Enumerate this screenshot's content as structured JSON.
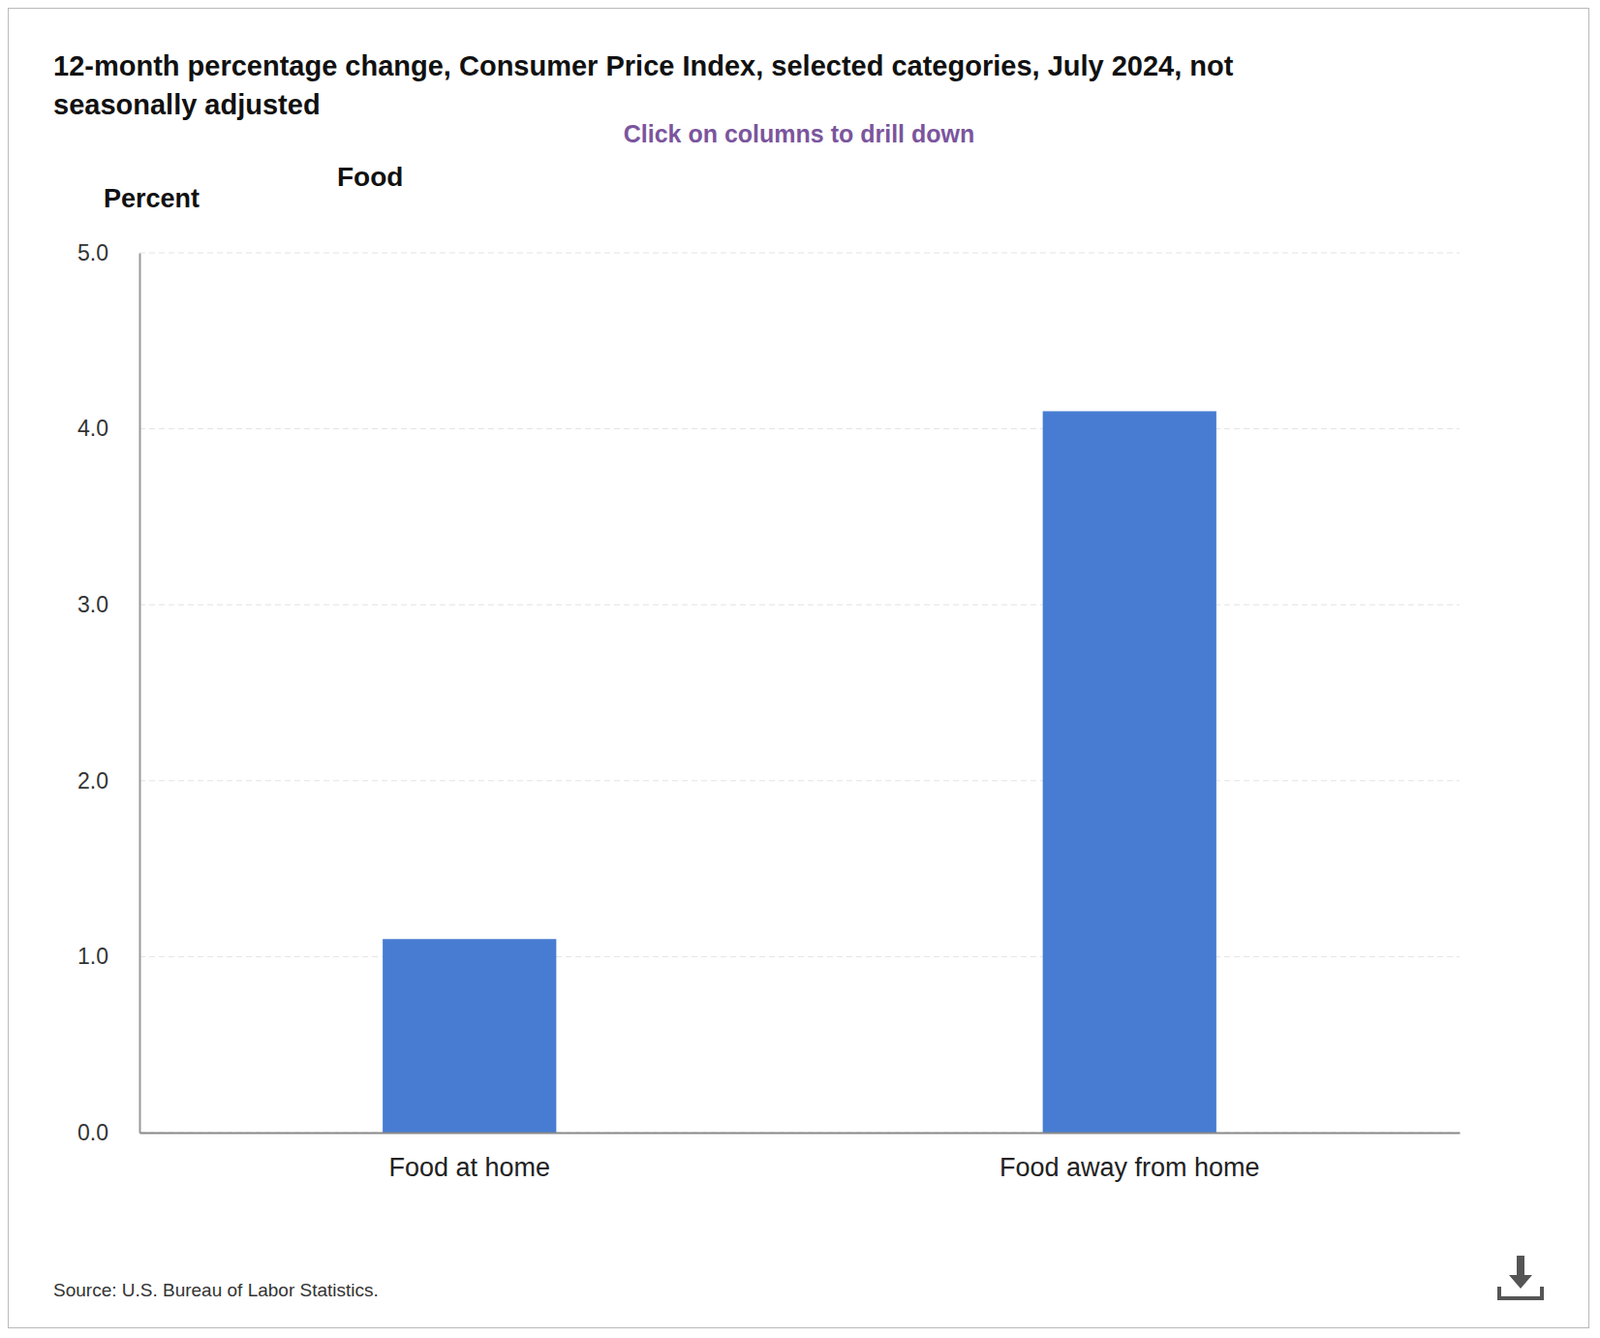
{
  "chart_data": {
    "type": "bar",
    "title": "12-month percentage change, Consumer Price Index, selected categories, July 2024, not seasonally adjusted",
    "subtitle": "Click on columns to drill down",
    "annotations": [
      "Food"
    ],
    "y_label": "Percent",
    "source": "Source: U.S. Bureau of Labor Statistics.",
    "categories": [
      "Food at home",
      "Food away from home"
    ],
    "values": [
      1.1,
      4.1
    ],
    "color": "#477cd2",
    "ylim": [
      0,
      5
    ],
    "yticks": [
      {
        "value": 0,
        "label": "0.0"
      },
      {
        "value": 1,
        "label": "1.0"
      },
      {
        "value": 2,
        "label": "2.0"
      },
      {
        "value": 3,
        "label": "3.0"
      },
      {
        "value": 4,
        "label": "4.0"
      },
      {
        "value": 5,
        "label": "5.0"
      }
    ],
    "grid": true
  }
}
